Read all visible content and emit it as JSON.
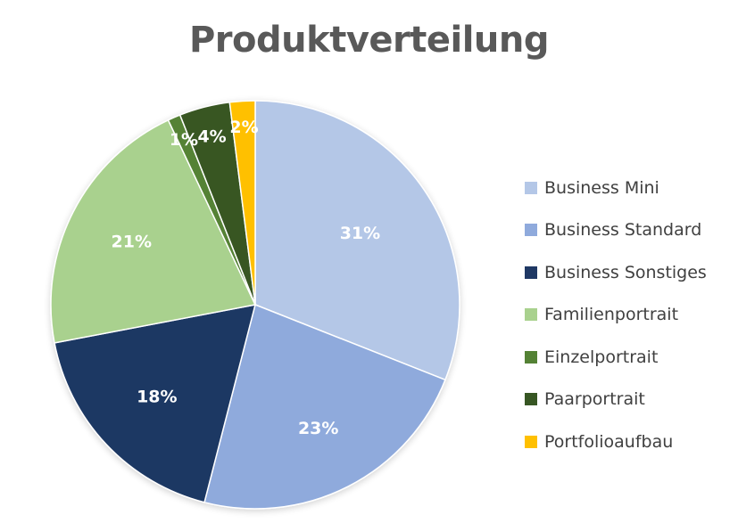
{
  "chart_data": {
    "type": "pie",
    "title": "Produktverteilung",
    "categories": [
      "Business Mini",
      "Business Standard",
      "Business Sonstiges",
      "Familienportrait",
      "Einzelportrait",
      "Paarportrait",
      "Portfolioaufbau"
    ],
    "values": [
      31,
      23,
      18,
      21,
      1,
      4,
      2
    ],
    "labels": [
      "31%",
      "23%",
      "18%",
      "21%",
      "1%",
      "4%",
      "2%"
    ],
    "colors": [
      "#b4c7e7",
      "#8faadc",
      "#1f3864",
      "#a9d18e",
      "#548235",
      "#375623",
      "#ffc000"
    ],
    "label_colors": [
      "#ffffff",
      "#ffffff",
      "#ffffff",
      "#ffffff",
      "#ffffff",
      "#ffffff",
      "#ffffff"
    ],
    "start_angle": "top",
    "direction": "clockwise",
    "legend_position": "right"
  }
}
